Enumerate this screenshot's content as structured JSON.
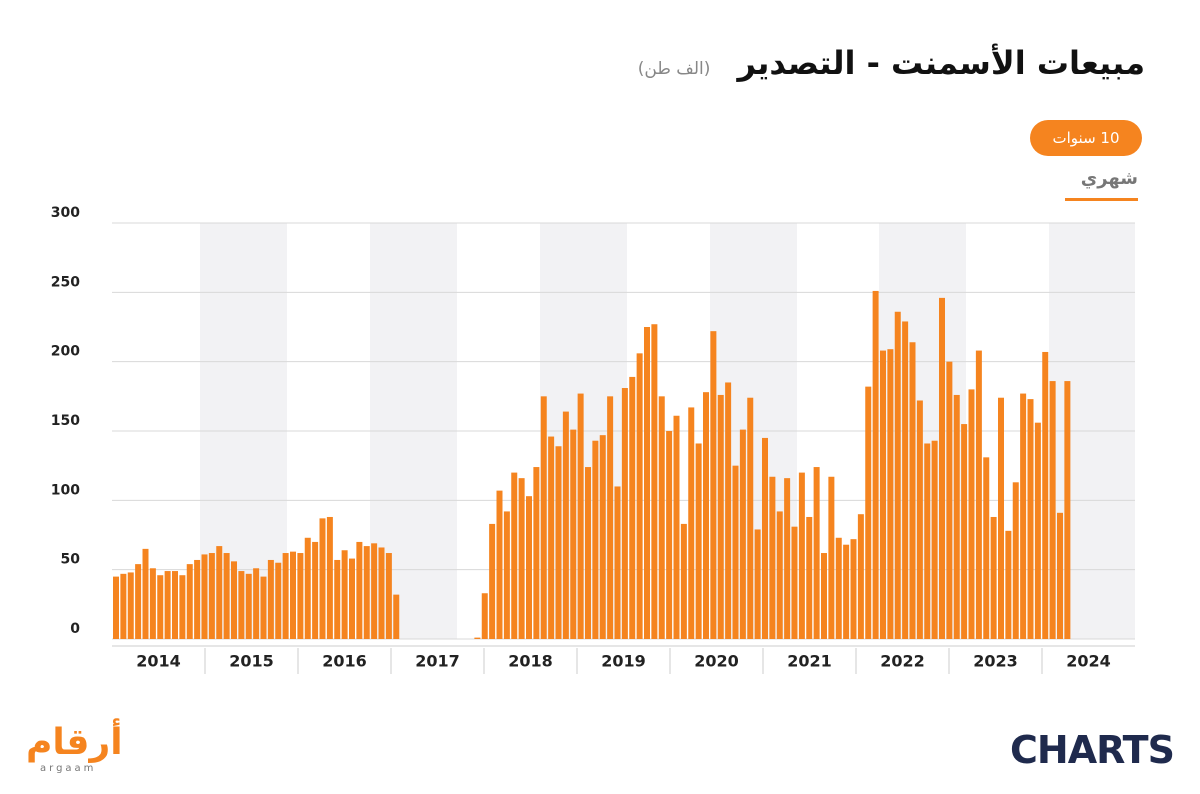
{
  "chart_data": {
    "type": "bar",
    "title": "مبيعات الأسمنت - التصدير",
    "subtitle": "(الف طن)",
    "year_labels": [
      "2014",
      "2015",
      "2016",
      "2017",
      "2018",
      "2019",
      "2020",
      "2021",
      "2022",
      "2023",
      "2024"
    ],
    "values": [
      45,
      47,
      48,
      54,
      65,
      51,
      46,
      49,
      49,
      46,
      54,
      57,
      61,
      62,
      67,
      62,
      56,
      49,
      47,
      51,
      45,
      57,
      55,
      62,
      63,
      62,
      73,
      70,
      87,
      88,
      57,
      64,
      58,
      70,
      67,
      69,
      66,
      62,
      32,
      null,
      null,
      null,
      null,
      null,
      null,
      null,
      null,
      null,
      null,
      1,
      33,
      83,
      107,
      92,
      120,
      116,
      103,
      124,
      175,
      146,
      139,
      164,
      151,
      177,
      124,
      143,
      147,
      175,
      110,
      181,
      189,
      206,
      225,
      227,
      175,
      150,
      161,
      83,
      167,
      141,
      178,
      222,
      176,
      185,
      125,
      151,
      174,
      79,
      145,
      117,
      92,
      116,
      81,
      120,
      88,
      124,
      62,
      117,
      73,
      68,
      72,
      90,
      182,
      251,
      208,
      209,
      236,
      229,
      214,
      172,
      141,
      143,
      246,
      200,
      176,
      155,
      180,
      208,
      131,
      88,
      174,
      78,
      113,
      177,
      173,
      156,
      207,
      186,
      91,
      186
    ],
    "color": "#f5841f",
    "ylim": [
      0,
      300
    ],
    "yticks": [
      0,
      50,
      100,
      150,
      200,
      250,
      300
    ],
    "grid": true
  },
  "ui": {
    "range_button": "10 سنوات",
    "tab": "شهري",
    "logo_left": "أرقام",
    "logo_left_sub": "argaam",
    "logo_right": "CHARTS"
  }
}
